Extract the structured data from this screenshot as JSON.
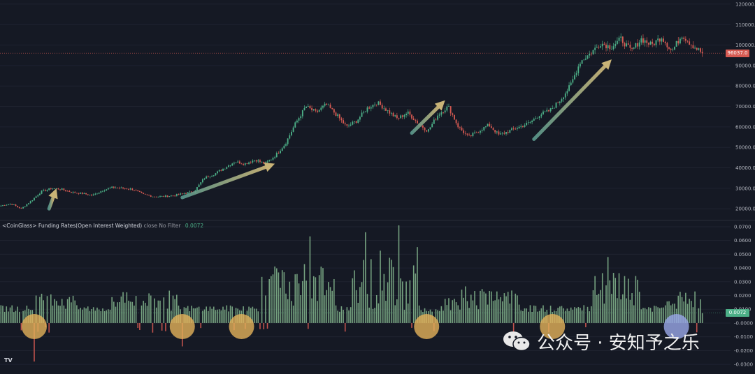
{
  "indicator": {
    "name": "<CoinGlass> Funding Rates(Open Interest Weighted)",
    "params": "close No Filter",
    "value": "0.0072"
  },
  "price_tag": "96037.0",
  "funding_tag": "0.0072",
  "watermark_text": "公众号 · 安知予之乐",
  "tv_logo": "TV",
  "colors": {
    "background": "#151924",
    "bull": "#4caf87",
    "bear": "#d65a52",
    "funding_positive": "#7fb08a",
    "funding_negative": "#d65a52",
    "price_tag_bg": "#d65a52",
    "funding_tag_bg": "#4caf87",
    "arrow": "#c8b377",
    "highlight_circle": "#e3b25a",
    "last_circle": "#9aa8e8"
  },
  "chart_data": [
    {
      "type": "candlestick",
      "title": "",
      "y_ticks": [
        "120000.0",
        "110000.0",
        "100000.0",
        "90000.0",
        "80000.0",
        "70000.0",
        "60000.0",
        "50000.0",
        "40000.0",
        "30000.0",
        "20000.0"
      ],
      "ylim": [
        17000,
        121000
      ],
      "last_price": 96037.0,
      "price_path": [
        21500,
        22500,
        20000,
        24000,
        28500,
        30000,
        29500,
        28000,
        27500,
        26500,
        29000,
        30500,
        30000,
        29500,
        27000,
        26000,
        26000,
        26500,
        27500,
        28500,
        35000,
        37000,
        40000,
        43000,
        42000,
        44000,
        42000,
        46000,
        52000,
        62000,
        70000,
        67000,
        71000,
        66000,
        60000,
        63000,
        69000,
        72000,
        68000,
        64000,
        67000,
        62000,
        58000,
        66000,
        70000,
        60000,
        55000,
        58000,
        61000,
        56000,
        58000,
        60000,
        62000,
        66000,
        68000,
        73000,
        80000,
        92000,
        96000,
        101000,
        99000,
        103000,
        97000,
        103000,
        100000,
        104000,
        97000,
        105000,
        100000,
        96037
      ],
      "annotations": [
        {
          "type": "arrow",
          "from": [
            26,
            20000
          ],
          "to": [
            30,
            30000
          ]
        },
        {
          "type": "arrow",
          "from": [
            98,
            25500
          ],
          "to": [
            148,
            42000
          ]
        },
        {
          "type": "arrow",
          "from": [
            222,
            57000
          ],
          "to": [
            240,
            73000
          ]
        },
        {
          "type": "arrow",
          "from": [
            288,
            54000
          ],
          "to": [
            330,
            93000
          ]
        }
      ]
    },
    {
      "type": "bar",
      "title": "<CoinGlass> Funding Rates(Open Interest Weighted)",
      "y_ticks": [
        "0.0700",
        "0.0600",
        "0.0500",
        "0.0400",
        "0.0300",
        "0.0200",
        "0.0100",
        "-0.0000",
        "-0.0100",
        "-0.0200",
        "-0.0300"
      ],
      "ylim": [
        -0.033,
        0.072
      ],
      "last_value": 0.0072,
      "notable_spikes": [
        {
          "index": 18,
          "value": -0.028
        },
        {
          "index": 19,
          "value": 0.02
        },
        {
          "index": 98,
          "value": -0.017
        },
        {
          "index": 167,
          "value": 0.063
        },
        {
          "index": 197,
          "value": 0.066
        },
        {
          "index": 215,
          "value": 0.071
        },
        {
          "index": 328,
          "value": 0.048
        }
      ],
      "highlight_circles_at_index": [
        18,
        98,
        130,
        230,
        298,
        365
      ]
    }
  ]
}
